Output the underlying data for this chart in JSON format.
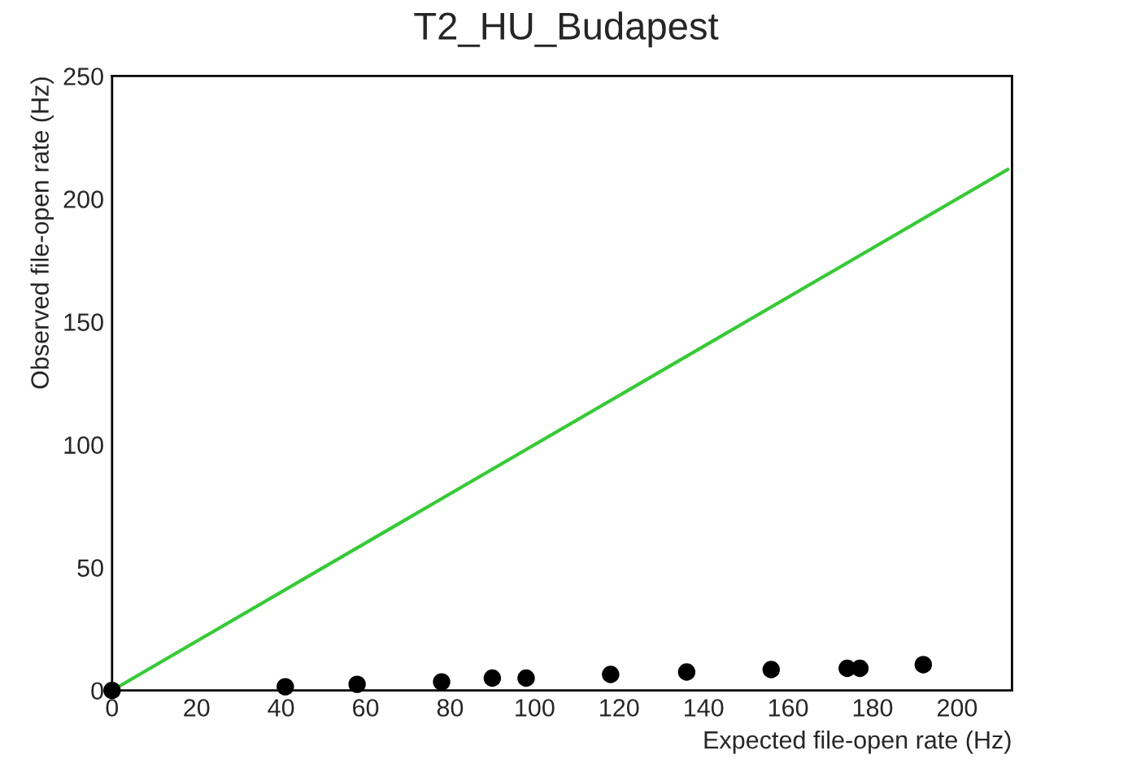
{
  "chart_data": {
    "type": "scatter",
    "title": "T2_HU_Budapest",
    "xlabel": "Expected file-open rate (Hz)",
    "ylabel": "Observed file-open rate (Hz)",
    "xlim": [
      0,
      213
    ],
    "ylim": [
      0,
      250
    ],
    "xticks": [
      0,
      20,
      40,
      60,
      80,
      100,
      120,
      140,
      160,
      180,
      200
    ],
    "yticks": [
      0,
      50,
      100,
      150,
      200,
      250
    ],
    "grid": false,
    "series": [
      {
        "marker": "circle",
        "color": "#000000",
        "x": [
          0,
          41,
          58,
          78,
          90,
          98,
          118,
          136,
          156,
          174,
          177,
          192
        ],
        "values": [
          0,
          1.5,
          2.5,
          3.5,
          5,
          5,
          6.5,
          7.5,
          8.5,
          9,
          9,
          10.5
        ]
      },
      {
        "type": "line",
        "color": "#33cc33",
        "x": [
          0,
          212
        ],
        "values": [
          0,
          212
        ],
        "line_style": "solid",
        "marker": "none"
      }
    ]
  }
}
